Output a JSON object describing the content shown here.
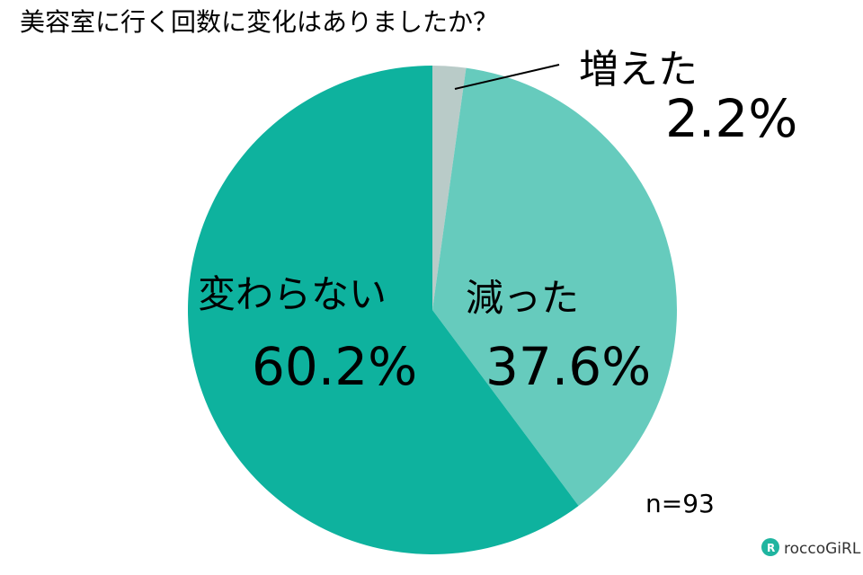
{
  "chart_data": {
    "type": "pie",
    "title": "美容室に行く回数に変化はありましたか？",
    "categories": [
      "増えた",
      "減った",
      "変わらない"
    ],
    "values": [
      2.2,
      37.6,
      60.2
    ],
    "value_labels": [
      "2.2%",
      "37.6%",
      "60.2%"
    ],
    "colors": [
      "#b9cbc8",
      "#66cbbd",
      "#0eb29e"
    ],
    "note": "n=93",
    "source": "roccoGiRL"
  }
}
